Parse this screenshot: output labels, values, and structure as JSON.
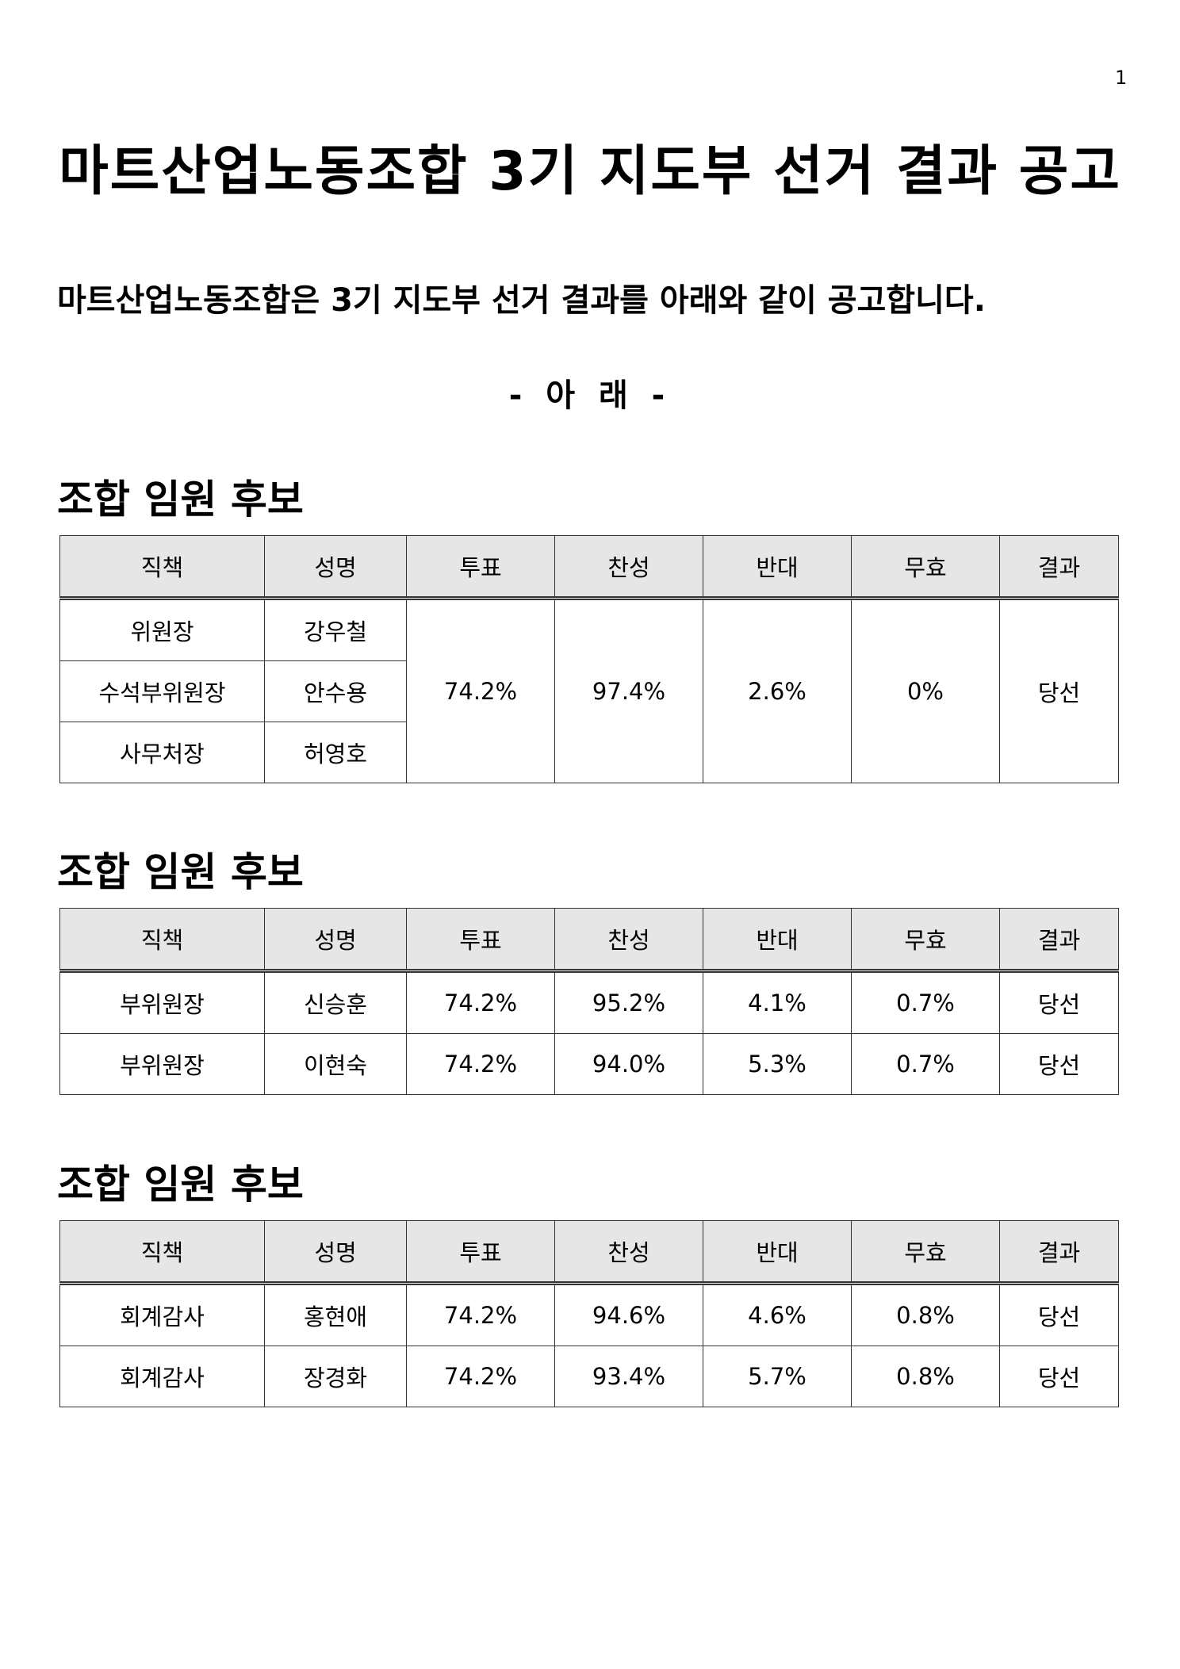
{
  "page_number": "1",
  "title": "마트산업노동조합 3기 지도부 선거 결과 공고",
  "intro": "마트산업노동조합은 3기 지도부 선거 결과를 아래와 같이 공고합니다.",
  "below_marker": "- 아 래 -",
  "columns": [
    "직책",
    "성명",
    "투표",
    "찬성",
    "반대",
    "무효",
    "결과"
  ],
  "sections": [
    {
      "heading": "조합 임원 후보",
      "rows": [
        {
          "position": "위원장",
          "name": "강우철"
        },
        {
          "position": "수석부위원장",
          "name": "안수용"
        },
        {
          "position": "사무처장",
          "name": "허영호"
        }
      ],
      "shared": {
        "turnout": "74.2%",
        "approve": "97.4%",
        "oppose": "2.6%",
        "invalid": "0%",
        "result": "당선"
      }
    },
    {
      "heading": "조합 임원 후보",
      "rows": [
        {
          "position": "부위원장",
          "name": "신승훈",
          "turnout": "74.2%",
          "approve": "95.2%",
          "oppose": "4.1%",
          "invalid": "0.7%",
          "result": "당선"
        },
        {
          "position": "부위원장",
          "name": "이현숙",
          "turnout": "74.2%",
          "approve": "94.0%",
          "oppose": "5.3%",
          "invalid": "0.7%",
          "result": "당선"
        }
      ]
    },
    {
      "heading": "조합 임원 후보",
      "rows": [
        {
          "position": "회계감사",
          "name": "홍현애",
          "turnout": "74.2%",
          "approve": "94.6%",
          "oppose": "4.6%",
          "invalid": "0.8%",
          "result": "당선"
        },
        {
          "position": "회계감사",
          "name": "장경화",
          "turnout": "74.2%",
          "approve": "93.4%",
          "oppose": "5.7%",
          "invalid": "0.8%",
          "result": "당선"
        }
      ]
    }
  ]
}
